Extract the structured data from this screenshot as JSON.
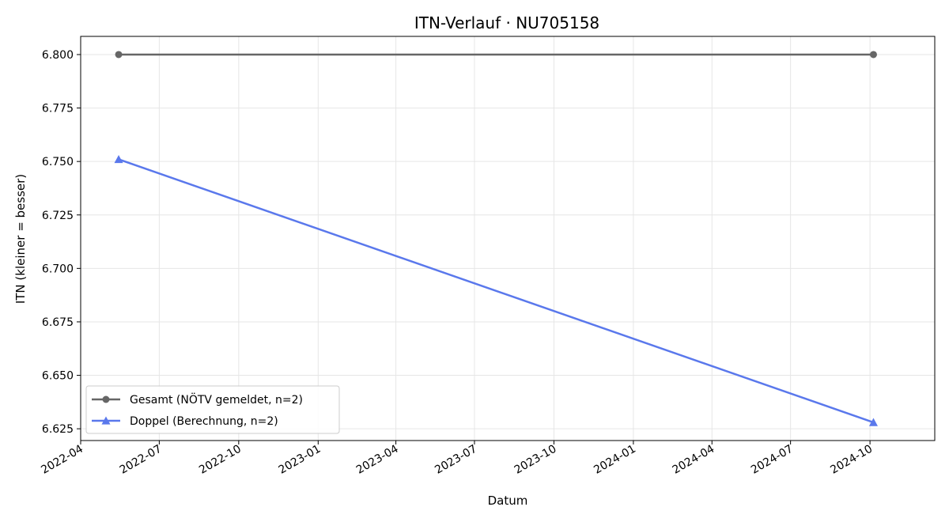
{
  "chart_data": {
    "type": "line",
    "title": "ITN-Verlauf · NU705158",
    "xlabel": "Datum",
    "ylabel": "ITN  (kleiner = besser)",
    "x_type": "date",
    "xlim": [
      "2022-04-01",
      "2024-12-15"
    ],
    "ylim": [
      6.6195,
      6.8085
    ],
    "x_ticks": [
      "2022-04-01",
      "2022-07-01",
      "2022-10-01",
      "2023-01-01",
      "2023-04-01",
      "2023-07-01",
      "2023-10-01",
      "2024-01-01",
      "2024-04-01",
      "2024-07-01",
      "2024-10-01"
    ],
    "x_tick_labels": [
      "2022-04",
      "2022-07",
      "2022-10",
      "2023-01",
      "2023-04",
      "2023-07",
      "2023-10",
      "2024-01",
      "2024-04",
      "2024-07",
      "2024-10"
    ],
    "y_ticks": [
      6.625,
      6.65,
      6.675,
      6.7,
      6.725,
      6.75,
      6.775,
      6.8
    ],
    "y_tick_labels": [
      "6.625",
      "6.650",
      "6.675",
      "6.700",
      "6.725",
      "6.750",
      "6.775",
      "6.800"
    ],
    "grid": true,
    "legend_position": "lower-left",
    "series": [
      {
        "name": "Gesamt (NÖTV gemeldet, n=2)",
        "color": "#666666",
        "marker": "circle",
        "x": [
          "2022-05-15",
          "2024-10-05"
        ],
        "y": [
          6.8,
          6.8
        ]
      },
      {
        "name": "Doppel (Berechnung, n=2)",
        "color": "#5a78ec",
        "marker": "triangle",
        "x": [
          "2022-05-15",
          "2024-10-05"
        ],
        "y": [
          6.751,
          6.628
        ]
      }
    ]
  }
}
